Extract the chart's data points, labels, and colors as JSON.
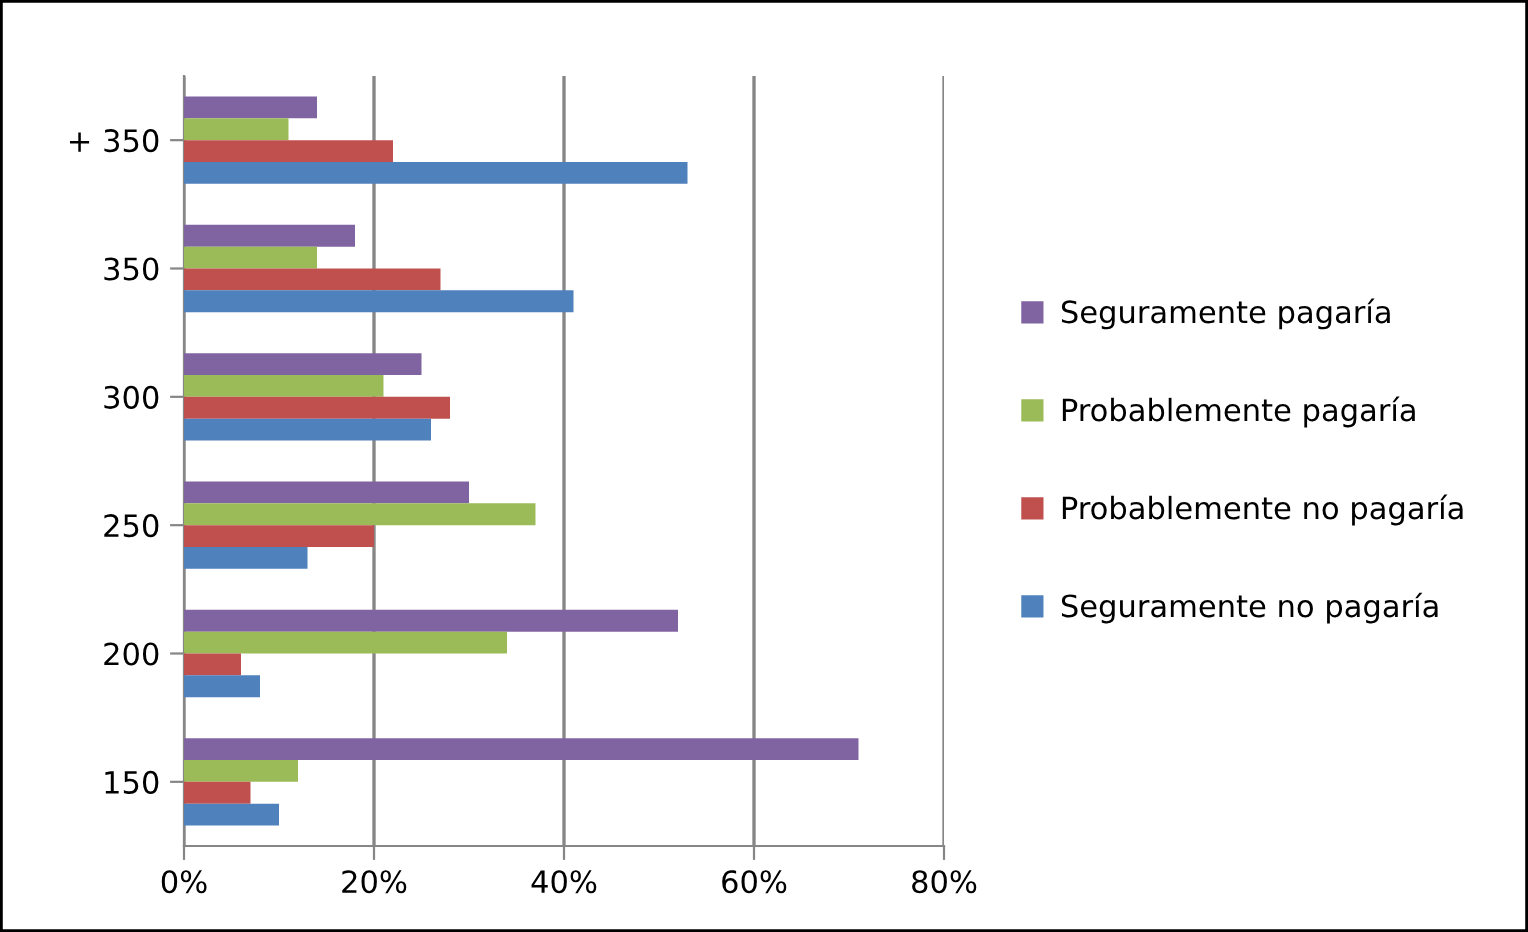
{
  "chart_data": {
    "type": "bar",
    "orientation": "horizontal",
    "categories": [
      "+ 350",
      "350",
      "300",
      "250",
      "200",
      "150"
    ],
    "series": [
      {
        "name": "Seguramente pagaría",
        "color": "#8064a2",
        "values": [
          14,
          18,
          25,
          30,
          52,
          71
        ]
      },
      {
        "name": "Probablemente pagaría",
        "color": "#9bbb59",
        "values": [
          11,
          14,
          21,
          37,
          34,
          12
        ]
      },
      {
        "name": "Probablemente no pagaría",
        "color": "#c0504d",
        "values": [
          22,
          27,
          28,
          20,
          6,
          7
        ]
      },
      {
        "name": "Seguramente no pagaría",
        "color": "#4f81bd",
        "values": [
          53,
          41,
          26,
          13,
          8,
          10
        ]
      }
    ],
    "xlim": [
      0,
      80
    ],
    "xticks": [
      {
        "value": 0,
        "label": "0%"
      },
      {
        "value": 20,
        "label": "20%"
      },
      {
        "value": 40,
        "label": "40%"
      },
      {
        "value": 60,
        "label": "60%"
      },
      {
        "value": 80,
        "label": "80%"
      }
    ],
    "grid": "x",
    "legend": "right"
  }
}
